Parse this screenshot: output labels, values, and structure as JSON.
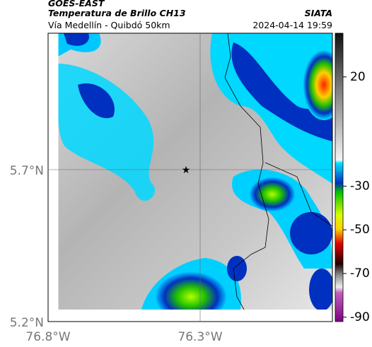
{
  "header": {
    "source": "GOES-EAST",
    "title": "Temperatura de Brillo CH13",
    "subtitle": "Vía Medellín - Quibdó 50km",
    "credit": "SIATA",
    "timestamp": "2024-04-14 19:59"
  },
  "map": {
    "lat_labels": [
      "5.7°N",
      "5.2°N"
    ],
    "lon_labels": [
      "76.8°W",
      "76.3°W"
    ]
  },
  "colorbar": {
    "range": [
      40,
      -92
    ],
    "ticks": [
      20,
      -30,
      -50,
      -70,
      -90
    ]
  }
}
